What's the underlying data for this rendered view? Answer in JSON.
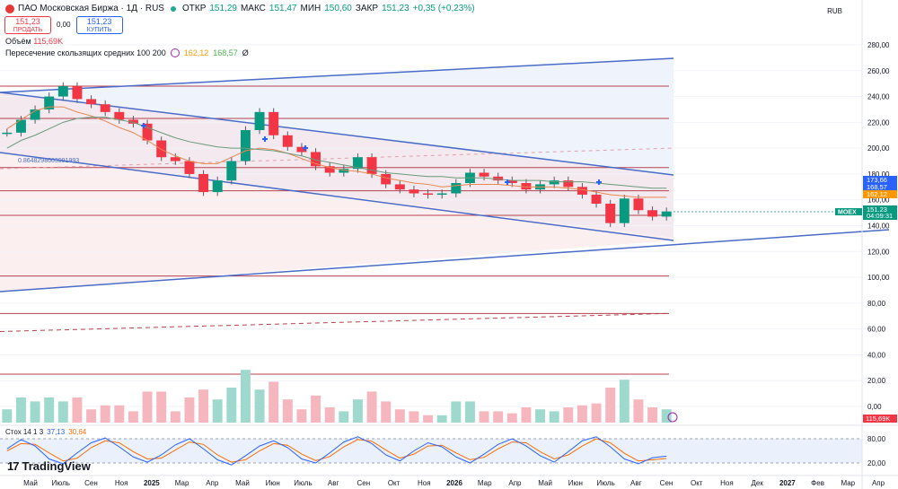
{
  "header": {
    "title": "ПАО Московская Биржа · 1Д · RUS",
    "open_label": "ОТКР",
    "open": "151,29",
    "high_label": "МАКС",
    "high": "151,47",
    "low_label": "МИН",
    "low": "150,60",
    "close_label": "ЗАКР",
    "close": "151,23",
    "change": "+0,35 (+0,23%)",
    "sell_price": "151,23",
    "sell_label": "ПРОДАТЬ",
    "spread": "0,00",
    "buy_price": "151,23",
    "buy_label": "КУПИТЬ",
    "volume_label": "Объём",
    "volume_value": "115,69K",
    "ma_label": "Пересечение скользящих средних 100 200",
    "ma_value1": "162,12",
    "ma_value2": "168,57",
    "ma_symbol": "Ø",
    "currency": "RUB"
  },
  "colors": {
    "up": "#089981",
    "down": "#f23645",
    "trend": "#4a6cc7",
    "hline": "#b5424e",
    "ma100": "#e8884f",
    "ma200": "#6a9a7a",
    "stoch_k": "#2962ff",
    "stoch_d": "#ff6d00"
  },
  "chart_data": {
    "type": "candlestick",
    "symbol": "MOEX",
    "y_ticks": [
      "280,00",
      "260,00",
      "240,00",
      "220,00",
      "200,00",
      "180,00",
      "160,00",
      "140,00",
      "120,00",
      "100,00",
      "80,00",
      "60,00",
      "40,00",
      "20,00",
      "0,00"
    ],
    "ylim": [
      0,
      290
    ],
    "x_ticks": [
      "Май",
      "Июль",
      "Сен",
      "Ноя",
      "2025",
      "Мар",
      "Апр",
      "Май",
      "Июн",
      "Июль",
      "Авг",
      "Сен",
      "Окт",
      "Ноя",
      "2026",
      "Мар",
      "Апр",
      "Май",
      "Июн",
      "Июль",
      "Авг",
      "Сен",
      "Окт",
      "Ноя",
      "Дек",
      "2027",
      "Фев",
      "Мар",
      "Апр"
    ],
    "fib_label": "0.8648298603991993",
    "horizontal_levels": [
      248,
      223,
      185,
      167,
      148,
      101,
      72,
      25
    ],
    "price_labels": [
      {
        "text": "173,66",
        "color": "#2962ff"
      },
      {
        "text": "168,57",
        "color": "#2962ff"
      },
      {
        "text": "162,12",
        "color": "#ff9800"
      },
      {
        "text": "151,23",
        "color": "#089981"
      },
      {
        "text": "04:09:31",
        "color": "#089981"
      }
    ],
    "symbol_tag": "MOEX",
    "volume_label": "115,69K",
    "series": [
      {
        "name": "price",
        "values": [
          212,
          222,
          230,
          240,
          248,
          238,
          234,
          228,
          222,
          219,
          206,
          193,
          190,
          180,
          166,
          175,
          190,
          214,
          228,
          210,
          201,
          197,
          186,
          181,
          184,
          193,
          180,
          172,
          168,
          165,
          164,
          165,
          173,
          181,
          178,
          175,
          173,
          168,
          172,
          175,
          170,
          164,
          157,
          142,
          161,
          152,
          147,
          151
        ]
      },
      {
        "name": "ma100",
        "values": [
          215,
          222,
          229,
          232,
          232,
          228,
          225,
          221,
          216,
          212,
          206,
          199,
          194,
          190,
          188,
          188,
          193,
          198,
          200,
          199,
          196,
          192,
          188,
          185,
          183,
          182,
          180,
          177,
          175,
          173,
          172,
          170,
          171,
          172,
          172,
          172,
          171,
          170,
          170,
          170,
          169,
          168,
          166,
          164,
          163,
          162,
          162,
          162
        ]
      },
      {
        "name": "ma200",
        "values": [
          200,
          206,
          210,
          215,
          220,
          223,
          224,
          224,
          222,
          220,
          216,
          212,
          208,
          205,
          203,
          201,
          200,
          200,
          199,
          198,
          196,
          194,
          191,
          189,
          187,
          185,
          183,
          181,
          180,
          179,
          178,
          178,
          177,
          177,
          177,
          176,
          175,
          175,
          175,
          174,
          174,
          174,
          173,
          172,
          171,
          170,
          169,
          169
        ]
      }
    ],
    "stochastic": {
      "label": "Стох 14 1 3",
      "k": "37,13",
      "d": "30,64",
      "levels": [
        80,
        20
      ],
      "axis": [
        "80,00",
        "20,00"
      ],
      "k_values": [
        55,
        78,
        62,
        30,
        18,
        45,
        70,
        82,
        60,
        35,
        22,
        40,
        65,
        80,
        55,
        28,
        15,
        38,
        62,
        75,
        58,
        30,
        20,
        45,
        72,
        85,
        68,
        40,
        25,
        50,
        70,
        60,
        35,
        20,
        42,
        66,
        80,
        62,
        38,
        22,
        48,
        75,
        85,
        60,
        30,
        18,
        33,
        37
      ],
      "d_values": [
        50,
        68,
        66,
        45,
        25,
        32,
        58,
        75,
        70,
        48,
        30,
        32,
        52,
        72,
        66,
        40,
        22,
        28,
        50,
        68,
        64,
        42,
        26,
        36,
        60,
        78,
        74,
        52,
        32,
        42,
        62,
        64,
        45,
        28,
        34,
        55,
        72,
        70,
        48,
        30,
        40,
        62,
        80,
        70,
        44,
        25,
        28,
        31
      ]
    }
  }
}
